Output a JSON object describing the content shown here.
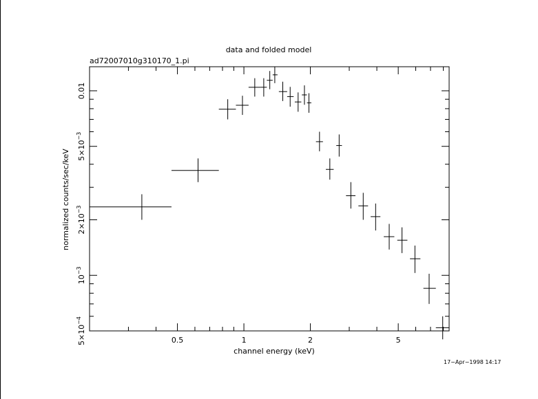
{
  "chart_data": {
    "type": "scatter",
    "title": "data and folded model",
    "subtitle": "ad72007010g310170_1.pi",
    "xlabel": "channel energy (keV)",
    "ylabel": "normalized counts/sec/keV",
    "xscale": "log",
    "yscale": "log",
    "xlim": [
      0.2,
      8.5
    ],
    "ylim": [
      0.0005,
      0.0135
    ],
    "grid": false,
    "x_tick_labels": [
      {
        "value": 0.5,
        "label": "0.5"
      },
      {
        "value": 1,
        "label": "1"
      },
      {
        "value": 2,
        "label": "2"
      },
      {
        "value": 5,
        "label": "5"
      }
    ],
    "y_tick_labels": [
      {
        "value": 0.0005,
        "mant": "5×10",
        "exp": "−4"
      },
      {
        "value": 0.001,
        "mant": "10",
        "exp": "−3"
      },
      {
        "value": 0.002,
        "mant": "2×10",
        "exp": "−3"
      },
      {
        "value": 0.005,
        "mant": "5×10",
        "exp": "−3"
      },
      {
        "value": 0.01,
        "mant": "0.01",
        "exp": ""
      }
    ],
    "series": [
      {
        "points": [
          {
            "x": 0.345,
            "xlo": 0.2,
            "xhi": 0.47,
            "y": 0.00235,
            "ylo": 0.002,
            "yhi": 0.00275
          },
          {
            "x": 0.62,
            "xlo": 0.47,
            "xhi": 0.77,
            "y": 0.0037,
            "ylo": 0.0032,
            "yhi": 0.0043
          },
          {
            "x": 0.845,
            "xlo": 0.77,
            "xhi": 0.92,
            "y": 0.00795,
            "ylo": 0.007,
            "yhi": 0.009
          },
          {
            "x": 0.985,
            "xlo": 0.92,
            "xhi": 1.05,
            "y": 0.00835,
            "ylo": 0.0074,
            "yhi": 0.0094
          },
          {
            "x": 1.12,
            "xlo": 1.05,
            "xhi": 1.19,
            "y": 0.01045,
            "ylo": 0.0093,
            "yhi": 0.0117
          },
          {
            "x": 1.23,
            "xlo": 1.19,
            "xhi": 1.27,
            "y": 0.01045,
            "ylo": 0.0093,
            "yhi": 0.0117
          },
          {
            "x": 1.31,
            "xlo": 1.27,
            "xhi": 1.35,
            "y": 0.0114,
            "ylo": 0.0102,
            "yhi": 0.0128
          },
          {
            "x": 1.38,
            "xlo": 1.35,
            "xhi": 1.42,
            "y": 0.0122,
            "ylo": 0.011,
            "yhi": 0.0135
          },
          {
            "x": 1.5,
            "xlo": 1.44,
            "xhi": 1.57,
            "y": 0.0099,
            "ylo": 0.0088,
            "yhi": 0.0112
          },
          {
            "x": 1.62,
            "xlo": 1.57,
            "xhi": 1.68,
            "y": 0.0093,
            "ylo": 0.0082,
            "yhi": 0.0105
          },
          {
            "x": 1.76,
            "xlo": 1.7,
            "xhi": 1.82,
            "y": 0.0087,
            "ylo": 0.0077,
            "yhi": 0.0098
          },
          {
            "x": 1.88,
            "xlo": 1.83,
            "xhi": 1.93,
            "y": 0.0095,
            "ylo": 0.0084,
            "yhi": 0.0107
          },
          {
            "x": 1.97,
            "xlo": 1.93,
            "xhi": 2.02,
            "y": 0.0086,
            "ylo": 0.0076,
            "yhi": 0.0097
          },
          {
            "x": 2.2,
            "xlo": 2.12,
            "xhi": 2.28,
            "y": 0.0053,
            "ylo": 0.0047,
            "yhi": 0.006
          },
          {
            "x": 2.45,
            "xlo": 2.35,
            "xhi": 2.55,
            "y": 0.00375,
            "ylo": 0.0033,
            "yhi": 0.0043
          },
          {
            "x": 2.7,
            "xlo": 2.62,
            "xhi": 2.78,
            "y": 0.00505,
            "ylo": 0.0044,
            "yhi": 0.0058
          },
          {
            "x": 3.05,
            "xlo": 2.9,
            "xhi": 3.2,
            "y": 0.0027,
            "ylo": 0.0023,
            "yhi": 0.0032
          },
          {
            "x": 3.47,
            "xlo": 3.3,
            "xhi": 3.65,
            "y": 0.00238,
            "ylo": 0.002,
            "yhi": 0.0028
          },
          {
            "x": 3.95,
            "xlo": 3.75,
            "xhi": 4.15,
            "y": 0.00208,
            "ylo": 0.00175,
            "yhi": 0.00245
          },
          {
            "x": 4.55,
            "xlo": 4.3,
            "xhi": 4.8,
            "y": 0.00162,
            "ylo": 0.00138,
            "yhi": 0.0019
          },
          {
            "x": 5.2,
            "xlo": 4.95,
            "xhi": 5.5,
            "y": 0.00155,
            "ylo": 0.00132,
            "yhi": 0.00182
          },
          {
            "x": 5.95,
            "xlo": 5.65,
            "xhi": 6.3,
            "y": 0.00123,
            "ylo": 0.00103,
            "yhi": 0.00145
          },
          {
            "x": 6.9,
            "xlo": 6.5,
            "xhi": 7.4,
            "y": 0.00085,
            "ylo": 0.0007,
            "yhi": 0.00102
          },
          {
            "x": 7.95,
            "xlo": 7.4,
            "xhi": 8.5,
            "y": 0.00052,
            "ylo": 0.00045,
            "yhi": 0.0006
          }
        ]
      }
    ]
  },
  "footer": {
    "timestamp": "17−Apr−1998 14:17"
  }
}
